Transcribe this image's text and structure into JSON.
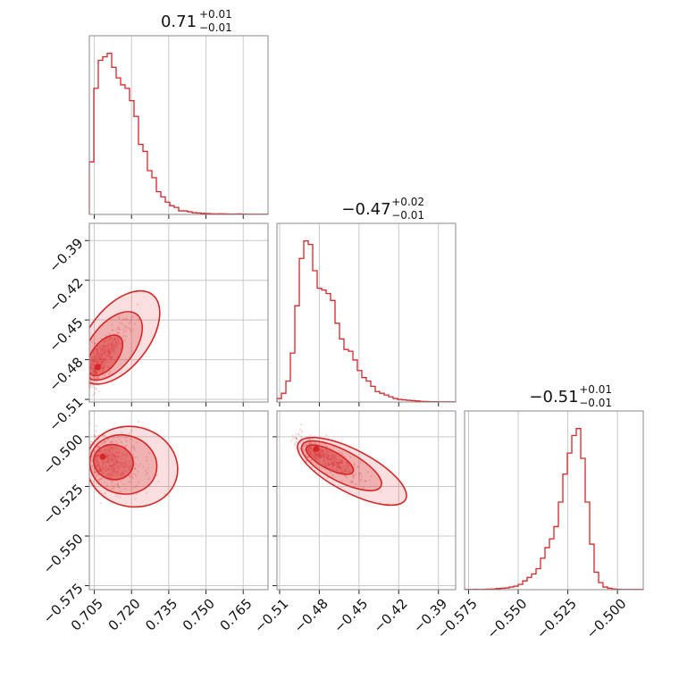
{
  "chart_data": {
    "type": "corner",
    "color": "#d62728",
    "parameters": [
      {
        "index": 0,
        "title": {
          "value": "0.71",
          "plus": "+0.01",
          "minus": "−0.01"
        },
        "range": [
          0.703,
          0.775
        ],
        "ticks": [
          0.705,
          0.72,
          0.735,
          0.75,
          0.765
        ],
        "tick_labels": [
          "0.705",
          "0.720",
          "0.735",
          "0.750",
          "0.765"
        ]
      },
      {
        "index": 1,
        "title": {
          "value": "−0.47",
          "plus": "+0.02",
          "minus": "−0.01"
        },
        "range": [
          -0.512,
          -0.377
        ],
        "ticks": [
          -0.51,
          -0.48,
          -0.45,
          -0.42,
          -0.39
        ],
        "tick_labels": [
          "−0.51",
          "−0.48",
          "−0.45",
          "−0.42",
          "−0.39"
        ]
      },
      {
        "index": 2,
        "title": {
          "value": "−0.51",
          "plus": "+0.01",
          "minus": "−0.01"
        },
        "range": [
          -0.577,
          -0.487
        ],
        "ticks": [
          -0.575,
          -0.55,
          -0.525,
          -0.5
        ],
        "tick_labels": [
          "−0.575",
          "−0.550",
          "−0.525",
          "−0.500"
        ]
      }
    ],
    "histograms": [
      {
        "param": 0,
        "counts": [
          0.3,
          0.72,
          0.88,
          0.9,
          0.92,
          0.84,
          0.78,
          0.74,
          0.72,
          0.65,
          0.56,
          0.4,
          0.36,
          0.25,
          0.21,
          0.13,
          0.1,
          0.07,
          0.05,
          0.04,
          0.02,
          0.02,
          0.015,
          0.01,
          0.008,
          0.006,
          0.005,
          0.004,
          0.003,
          0.004,
          0.003,
          0.002,
          0.002,
          0.003,
          0.002,
          0.001,
          0.001,
          0.001,
          0.001,
          0.001
        ]
      },
      {
        "param": 1,
        "counts": [
          0.02,
          0.05,
          0.12,
          0.28,
          0.55,
          0.82,
          0.92,
          0.9,
          0.75,
          0.65,
          0.64,
          0.62,
          0.58,
          0.45,
          0.36,
          0.3,
          0.29,
          0.24,
          0.18,
          0.14,
          0.12,
          0.09,
          0.06,
          0.05,
          0.04,
          0.03,
          0.02,
          0.015,
          0.012,
          0.01,
          0.008,
          0.006,
          0.004,
          0.003,
          0.002,
          0.002,
          0.001,
          0.001,
          0.001,
          0.001
        ]
      },
      {
        "param": 2,
        "counts": [
          0.001,
          0.001,
          0.002,
          0.001,
          0.002,
          0.003,
          0.004,
          0.006,
          0.008,
          0.01,
          0.015,
          0.02,
          0.03,
          0.05,
          0.07,
          0.09,
          0.12,
          0.18,
          0.24,
          0.29,
          0.36,
          0.5,
          0.66,
          0.78,
          0.88,
          0.92,
          0.75,
          0.5,
          0.26,
          0.1,
          0.04,
          0.015,
          0.008,
          0.004,
          0.002,
          0.001,
          0.001,
          0.001,
          0.001,
          0.001
        ]
      }
    ],
    "joint": [
      {
        "x_param": 0,
        "y_param": 1,
        "peak": [
          0.705,
          -0.487
        ],
        "spread": [
          0.006,
          0.016
        ],
        "correlation": 0.9
      },
      {
        "x_param": 0,
        "y_param": 2,
        "peak": [
          0.707,
          -0.511
        ],
        "spread": [
          0.008,
          0.007
        ],
        "correlation": -0.35
      },
      {
        "x_param": 1,
        "y_param": 2,
        "peak": [
          -0.485,
          -0.507
        ],
        "spread": [
          0.018,
          0.007
        ],
        "correlation": -0.9
      }
    ],
    "contour_levels": [
      "1σ",
      "1.5σ",
      "2σ"
    ],
    "grid": true
  }
}
